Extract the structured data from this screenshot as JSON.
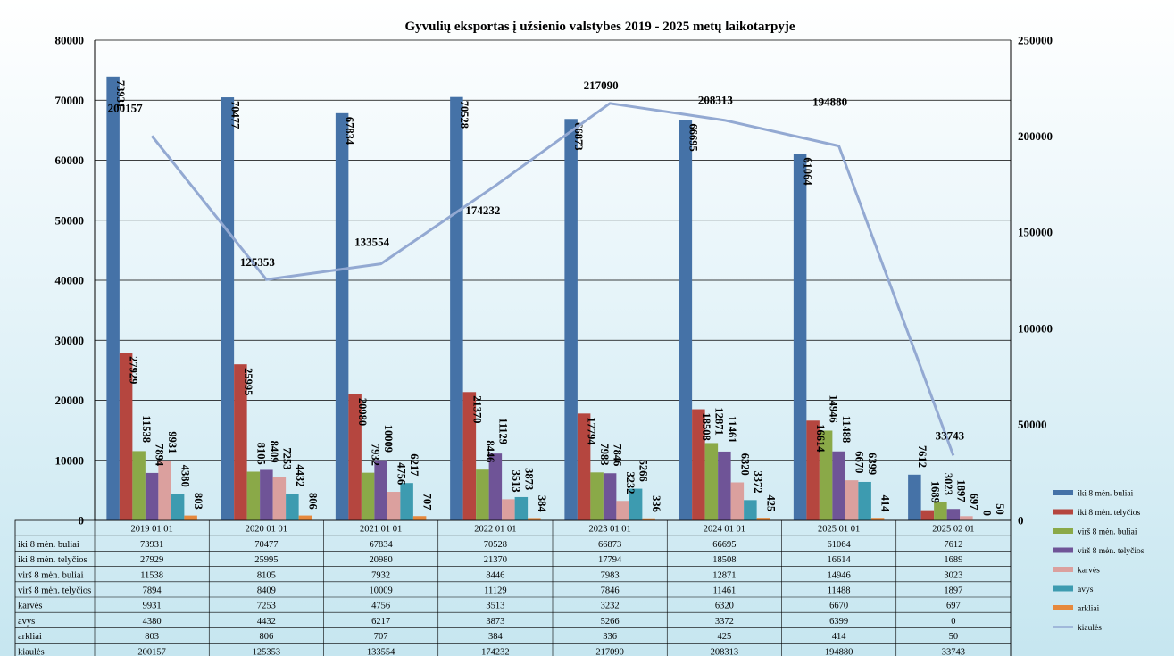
{
  "chart_data": {
    "type": "bar",
    "title": "Gyvulių  eksportas į užsienio  valstybes 2019 - 2025 metų  laikotarpyje",
    "categories": [
      "2019 01 01",
      "2020 01 01",
      "2021 01 01",
      "2022 01 01",
      "2023 01 01",
      "2024 01 01",
      "2025 01 01",
      "2025 02 01"
    ],
    "ylim": [
      0,
      80000
    ],
    "yticks": [
      "0",
      "10000",
      "20000",
      "30000",
      "40000",
      "50000",
      "60000",
      "70000",
      "80000"
    ],
    "y2lim": [
      0,
      250000
    ],
    "y2ticks": [
      "0",
      "50000",
      "100000",
      "150000",
      "200000",
      "250000"
    ],
    "grid": true,
    "legend_position": "right",
    "series": [
      {
        "name": "iki 8 mėn. buliai",
        "color": "#4572a7",
        "values": [
          73931,
          70477,
          67834,
          70528,
          66873,
          66695,
          61064,
          7612
        ]
      },
      {
        "name": "iki 8 mėn. telyčios",
        "color": "#b5463f",
        "values": [
          27929,
          25995,
          20980,
          21370,
          17794,
          18508,
          16614,
          1689
        ]
      },
      {
        "name": "virš 8 mėn. buliai",
        "color": "#8aa948",
        "values": [
          11538,
          8105,
          7932,
          8446,
          7983,
          12871,
          14946,
          3023
        ]
      },
      {
        "name": "virš 8 mėn. telyčios",
        "color": "#6f5497",
        "values": [
          7894,
          8409,
          10009,
          11129,
          7846,
          11461,
          11488,
          1897
        ]
      },
      {
        "name": "karvės",
        "color": "#dba09e",
        "values": [
          9931,
          7253,
          4756,
          3513,
          3232,
          6320,
          6670,
          697
        ]
      },
      {
        "name": "avys",
        "color": "#3d9bb0",
        "values": [
          4380,
          4432,
          6217,
          3873,
          5266,
          3372,
          6399,
          0
        ]
      },
      {
        "name": "arkliai",
        "color": "#e6893d",
        "values": [
          803,
          806,
          707,
          384,
          336,
          425,
          414,
          50
        ]
      }
    ],
    "line_series": {
      "name": "kiaulės",
      "color": "#93a9d2",
      "axis": "secondary",
      "values": [
        200157,
        125353,
        133554,
        174232,
        217090,
        208313,
        194880,
        33743
      ]
    }
  }
}
